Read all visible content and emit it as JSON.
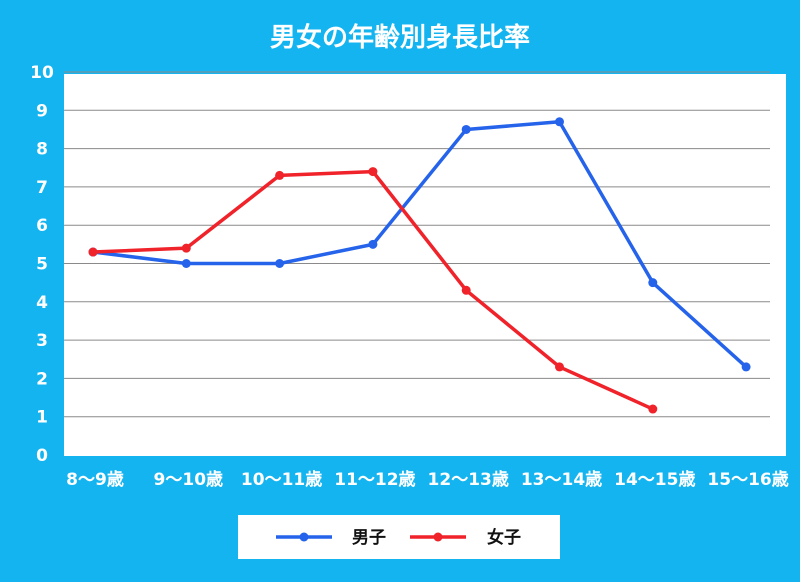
{
  "chart_data": {
    "type": "line",
    "title": "男女の年齢別身長比率",
    "categories": [
      "8〜9歳",
      "9〜10歳",
      "10〜11歳",
      "11〜12歳",
      "12〜13歳",
      "13〜14歳",
      "14〜15歳",
      "15〜16歳"
    ],
    "y_ticks": [
      "0",
      "1",
      "2",
      "3",
      "4",
      "5",
      "6",
      "7",
      "8",
      "9",
      "10"
    ],
    "ylim": [
      0,
      10
    ],
    "grid": true,
    "legend_position": "bottom",
    "series": [
      {
        "name": "男子",
        "color": "#2563eb",
        "values": [
          5.3,
          5.0,
          5.0,
          5.5,
          8.5,
          8.7,
          4.5,
          2.3
        ]
      },
      {
        "name": "女子",
        "color": "#f0222a",
        "values": [
          5.3,
          5.4,
          7.3,
          7.4,
          4.3,
          2.3,
          1.2,
          null
        ]
      }
    ]
  }
}
